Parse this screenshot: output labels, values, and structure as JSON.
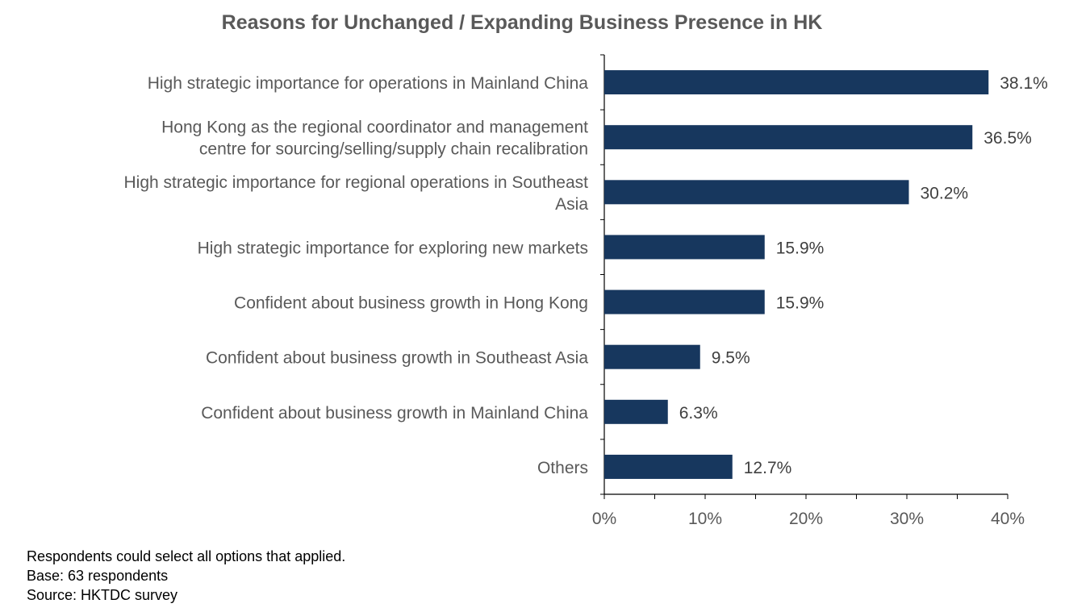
{
  "chart_data": {
    "type": "bar",
    "orientation": "horizontal",
    "title": "Reasons for Unchanged / Expanding Business Presence in HK",
    "categories": [
      [
        "High strategic importance for operations in Mainland China"
      ],
      [
        "Hong Kong as the regional coordinator and management",
        "centre for sourcing/selling/supply chain recalibration"
      ],
      [
        "High strategic importance for regional operations in Southeast",
        "Asia"
      ],
      [
        "High strategic importance for exploring new markets"
      ],
      [
        "Confident about business growth in Hong Kong"
      ],
      [
        "Confident about business growth in Southeast Asia"
      ],
      [
        "Confident about business growth in Mainland China"
      ],
      [
        "Others"
      ]
    ],
    "values": [
      38.1,
      36.5,
      30.2,
      15.9,
      15.9,
      9.5,
      6.3,
      12.7
    ],
    "data_labels": [
      "38.1%",
      "36.5%",
      "30.2%",
      "15.9%",
      "15.9%",
      "9.5%",
      "6.3%",
      "12.7%"
    ],
    "xlim": [
      0,
      40
    ],
    "xticks": [
      0,
      10,
      20,
      30,
      40
    ],
    "xtick_labels": [
      "0%",
      "10%",
      "20%",
      "30%",
      "40%"
    ],
    "xlabel": "",
    "ylabel": "",
    "grid": false,
    "bar_color": "#17375E"
  },
  "notes": [
    "Respondents could select all options that applied.",
    "Base: 63 respondents",
    "Source: HKTDC survey"
  ]
}
